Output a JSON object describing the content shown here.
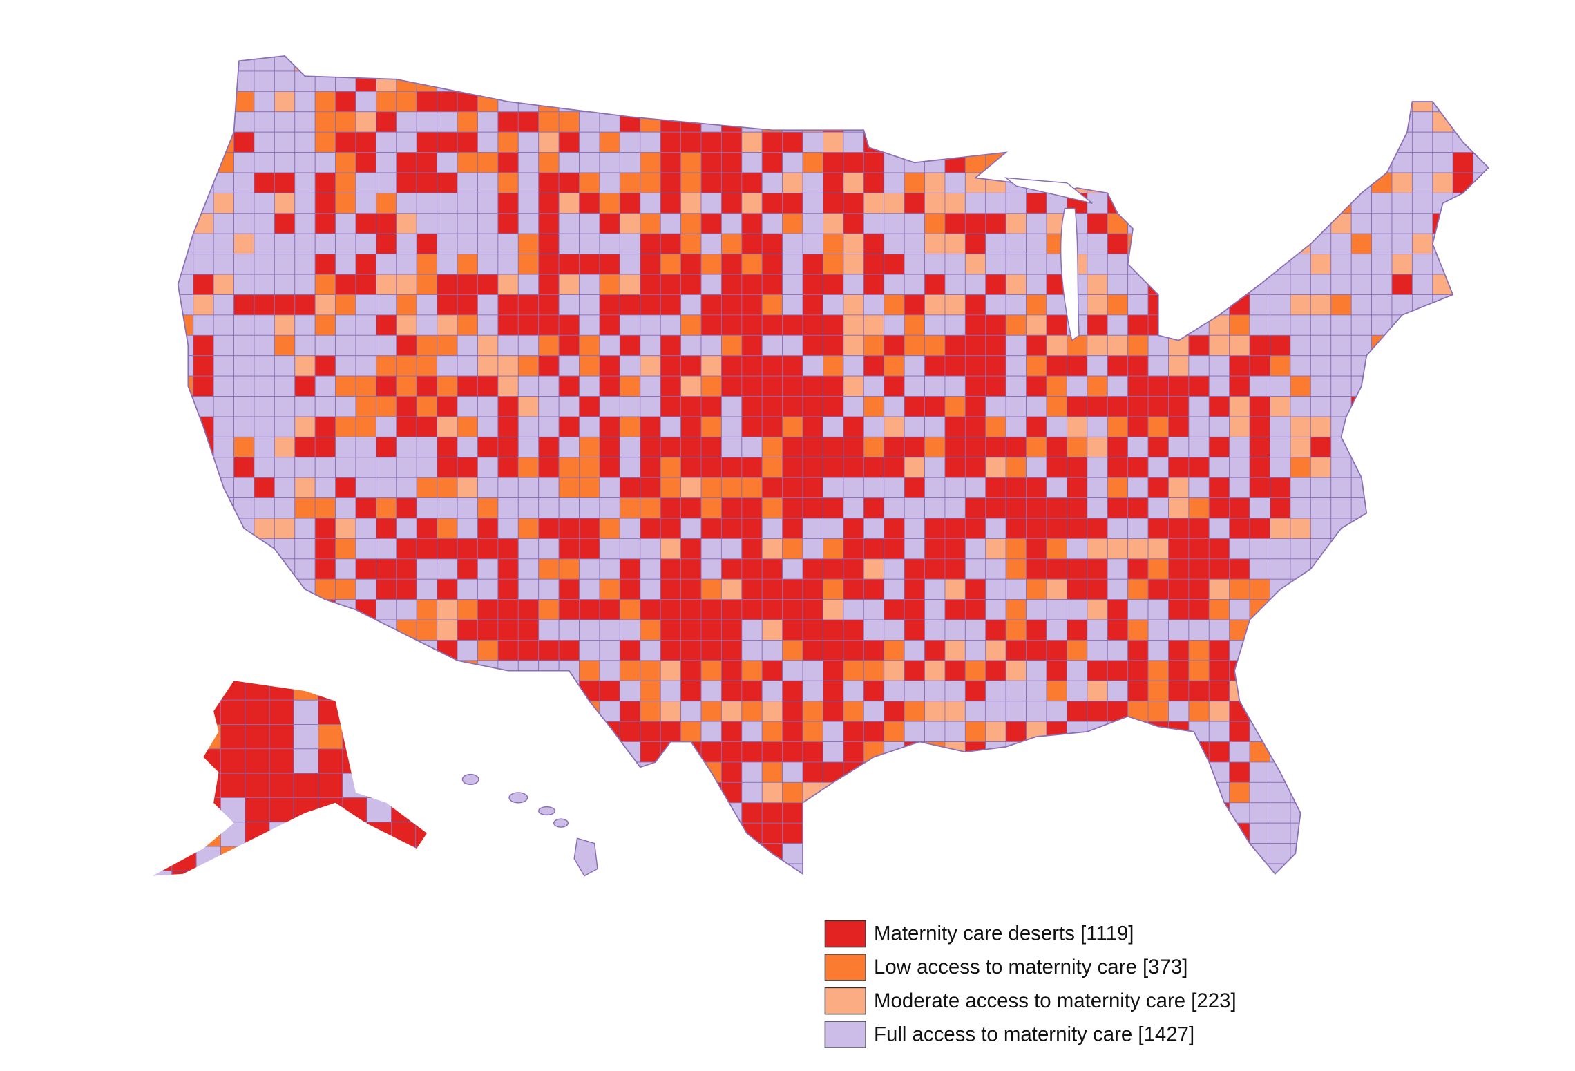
{
  "map": {
    "legend": [
      {
        "label": "Maternity care deserts [1119]",
        "color": "#e32222"
      },
      {
        "label": "Low access to maternity care [373]",
        "color": "#fb7c31"
      },
      {
        "label": "Moderate access to maternity care [223]",
        "color": "#fcac82"
      },
      {
        "label": "Full access to maternity care [1427]",
        "color": "#cbbde8"
      }
    ]
  }
}
